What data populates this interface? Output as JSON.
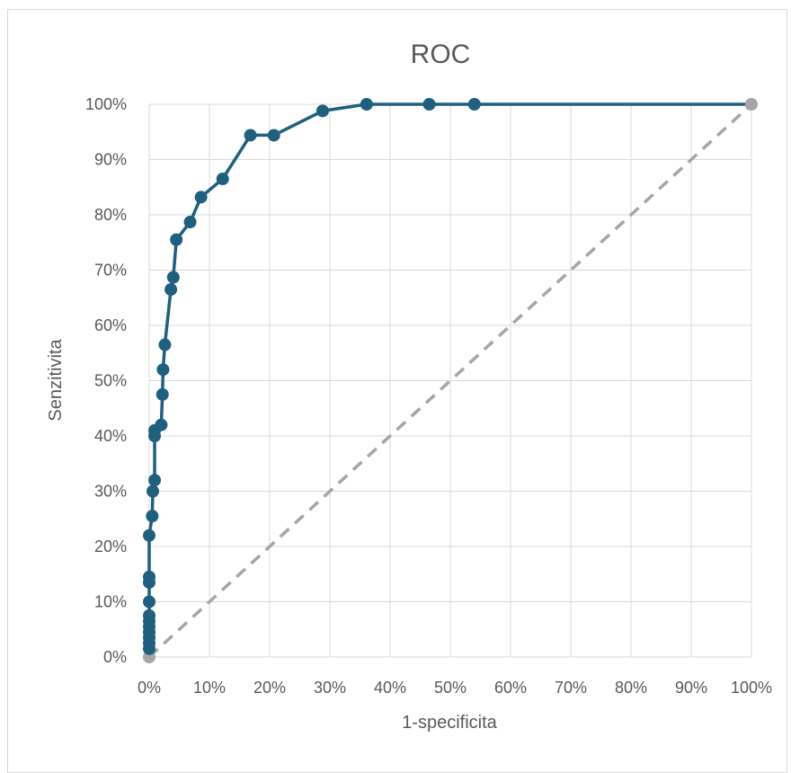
{
  "chart_data": {
    "type": "scatter",
    "title": "ROC",
    "xlabel": "1-specificita",
    "ylabel": "Senzitivita",
    "xlim": [
      0,
      1
    ],
    "ylim": [
      0,
      1
    ],
    "x_ticks": [
      "0%",
      "10%",
      "20%",
      "30%",
      "40%",
      "50%",
      "60%",
      "70%",
      "80%",
      "90%",
      "100%"
    ],
    "y_ticks": [
      "0%",
      "10%",
      "20%",
      "30%",
      "40%",
      "50%",
      "60%",
      "70%",
      "80%",
      "90%",
      "100%"
    ],
    "grid": true,
    "legend": "none",
    "series": [
      {
        "color": "#1f5f7f",
        "style": "line-with-markers",
        "points": [
          [
            0.0,
            0.0
          ],
          [
            0.0,
            0.015
          ],
          [
            0.0,
            0.025
          ],
          [
            0.0,
            0.035
          ],
          [
            0.0,
            0.045
          ],
          [
            0.0,
            0.055
          ],
          [
            0.0,
            0.065
          ],
          [
            0.0,
            0.075
          ],
          [
            0.0,
            0.1
          ],
          [
            0.0,
            0.135
          ],
          [
            0.0,
            0.145
          ],
          [
            0.0,
            0.22
          ],
          [
            0.005,
            0.255
          ],
          [
            0.006,
            0.3
          ],
          [
            0.009,
            0.32
          ],
          [
            0.009,
            0.4
          ],
          [
            0.009,
            0.41
          ],
          [
            0.02,
            0.42
          ],
          [
            0.022,
            0.475
          ],
          [
            0.023,
            0.52
          ],
          [
            0.026,
            0.565
          ],
          [
            0.036,
            0.665
          ],
          [
            0.04,
            0.687
          ],
          [
            0.045,
            0.755
          ],
          [
            0.068,
            0.787
          ],
          [
            0.086,
            0.832
          ],
          [
            0.122,
            0.865
          ],
          [
            0.168,
            0.944
          ],
          [
            0.207,
            0.944
          ],
          [
            0.288,
            0.988
          ],
          [
            0.361,
            1.0
          ],
          [
            0.465,
            1.0
          ],
          [
            0.54,
            1.0
          ],
          [
            1.0,
            1.0
          ]
        ]
      },
      {
        "color": "#a6a6a6",
        "style": "dashed",
        "points": [
          [
            0,
            0
          ],
          [
            1,
            1
          ]
        ]
      }
    ]
  }
}
